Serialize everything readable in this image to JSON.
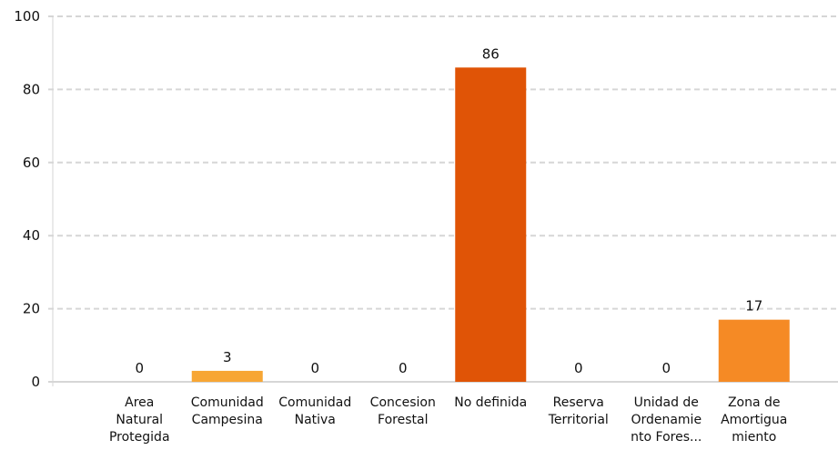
{
  "chart_data": {
    "type": "bar",
    "categories": [
      [
        "Area",
        "Natural",
        "Protegida"
      ],
      [
        "Comunidad",
        "Campesina"
      ],
      [
        "Comunidad",
        "Nativa"
      ],
      [
        "Concesion",
        "Forestal"
      ],
      [
        "No definida"
      ],
      [
        "Reserva",
        "Territorial"
      ],
      [
        "Unidad de",
        "Ordenamie",
        "nto Fores..."
      ],
      [
        "Zona de",
        "Amortigua",
        "miento"
      ]
    ],
    "values": [
      0,
      3,
      0,
      0,
      86,
      0,
      0,
      17
    ],
    "colors": [
      "#f7a634",
      "#f7a634",
      "#f7a634",
      "#f7a634",
      "#e05406",
      "#f7a634",
      "#f7a634",
      "#f58a25"
    ],
    "ylim": [
      0,
      100
    ],
    "yticks": [
      0,
      20,
      40,
      60,
      80,
      100
    ],
    "grid": true,
    "grid_style": "dashed",
    "legend": "none"
  }
}
